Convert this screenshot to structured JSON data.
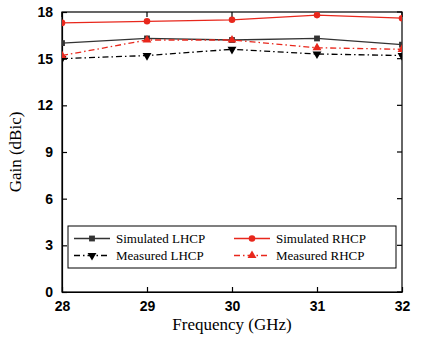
{
  "chart_data": {
    "type": "line",
    "x_label": "Frequency (GHz)",
    "y_label": "Gain (dBic)",
    "xlim": [
      28,
      32
    ],
    "xticks": [
      28,
      29,
      30,
      31,
      32
    ],
    "ylim": [
      0,
      18
    ],
    "yticks": [
      0,
      3,
      6,
      9,
      12,
      15,
      18
    ],
    "legend": "bottom",
    "x": [
      28,
      29,
      30,
      31,
      32
    ],
    "series": [
      {
        "name": "Simulated LHCP",
        "color": "#333333",
        "marker": "square",
        "line_style": "solid",
        "values": [
          16.0,
          16.3,
          16.2,
          16.3,
          15.9
        ]
      },
      {
        "name": "Simulated RHCP",
        "color": "#e8271c",
        "marker": "circle",
        "line_style": "solid",
        "values": [
          17.3,
          17.4,
          17.5,
          17.8,
          17.6
        ]
      },
      {
        "name": "Measured LHCP",
        "color": "#000000",
        "marker": "triangle-down",
        "line_style": "dash-dot",
        "values": [
          15.0,
          15.2,
          15.6,
          15.3,
          15.2
        ]
      },
      {
        "name": "Measured RHCP",
        "color": "#e8271c",
        "marker": "triangle-up",
        "line_style": "dash-dot",
        "values": [
          15.2,
          16.2,
          16.2,
          15.7,
          15.6
        ]
      }
    ]
  }
}
